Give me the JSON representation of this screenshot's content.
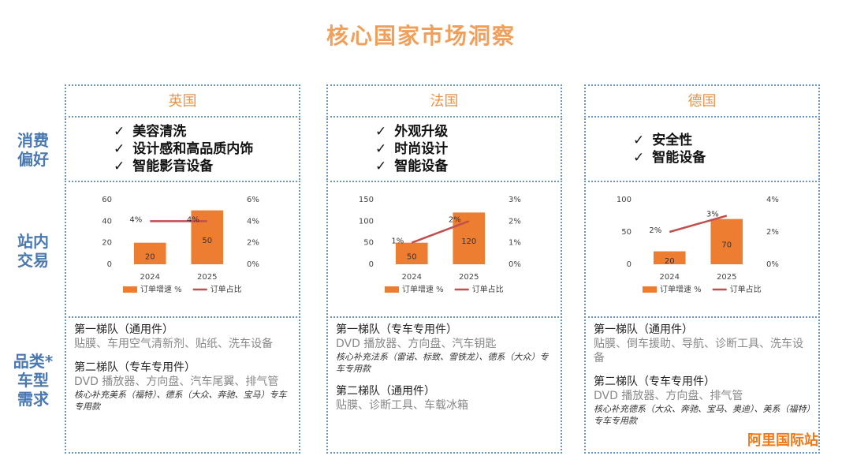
{
  "title": "核心国家市场洞察",
  "row_labels": [
    [
      "消费",
      "偏好"
    ],
    [
      "站内",
      "交易"
    ],
    [
      "品类*",
      "车型",
      "需求"
    ]
  ],
  "columns": [
    {
      "country": "英国",
      "preferences": [
        "美容清洗",
        "设计感和高品质内饰",
        "智能影音设备"
      ],
      "tiers": [
        {
          "title": "第一梯队（通用件）",
          "items": "贴膜、车用空气清新剂、贴纸、洗车设备"
        },
        {
          "title": "第二梯队（专车专用件）",
          "items": "DVD 播放器、方向盘、汽车尾翼、排气管",
          "note": "核心补充美系（福特）、德系（大众、奔驰、宝马）专车专用款"
        }
      ]
    },
    {
      "country": "法国",
      "preferences": [
        "外观升级",
        "时尚设计",
        "智能设备"
      ],
      "tiers": [
        {
          "title": "第一梯队（专车专用件）",
          "items": "DVD 播放器、方向盘、汽车钥匙",
          "note": "核心补充法系（雷诺、标致、雪铁龙）、德系（大众）专车专用款"
        },
        {
          "title": "第二梯队（通用件）",
          "items": "贴膜、诊断工具、车载冰箱"
        }
      ]
    },
    {
      "country": "德国",
      "preferences": [
        "安全性",
        "智能设备"
      ],
      "tiers": [
        {
          "title": "第一梯队（通用件）",
          "items": "贴膜、倒车援助、导航、诊断工具、洗车设备"
        },
        {
          "title": "第二梯队（专车专用件）",
          "items": "DVD 播放器、方向盘、排气管",
          "note": "核心补充德系（大众、奔驰、宝马、奥迪）、美系（福特）专车专用款"
        }
      ]
    }
  ],
  "watermark": "阿里国际站",
  "chart_data": [
    {
      "type": "bar",
      "categories": [
        "2024",
        "2025"
      ],
      "series": [
        {
          "name": "订单增速 %",
          "type": "bar",
          "color": "#ed7d31",
          "values": [
            20,
            50
          ]
        },
        {
          "name": "订单占比",
          "type": "line",
          "axis": "y2",
          "color": "#c0504d",
          "values": [
            4,
            4
          ],
          "value_labels": [
            "4%",
            "4%"
          ]
        }
      ],
      "ylim": [
        0,
        60
      ],
      "yticks": [
        0,
        20,
        40,
        60
      ],
      "y2lim": [
        0,
        6
      ],
      "y2ticks": [
        {
          "value": 0,
          "label": "0%"
        },
        {
          "value": 2,
          "label": "2%"
        },
        {
          "value": 4,
          "label": "4%"
        },
        {
          "value": 6,
          "label": "6%"
        }
      ]
    },
    {
      "type": "bar",
      "categories": [
        "2024",
        "2025"
      ],
      "series": [
        {
          "name": "订单增速 %",
          "type": "bar",
          "color": "#ed7d31",
          "values": [
            50,
            120
          ]
        },
        {
          "name": "订单占比",
          "type": "line",
          "axis": "y2",
          "color": "#c0504d",
          "values": [
            1,
            2
          ],
          "value_labels": [
            "1%",
            "2%"
          ]
        }
      ],
      "ylim": [
        0,
        150
      ],
      "yticks": [
        0,
        50,
        100,
        150
      ],
      "y2lim": [
        0,
        3
      ],
      "y2ticks": [
        {
          "value": 0,
          "label": "0%"
        },
        {
          "value": 1,
          "label": "1%"
        },
        {
          "value": 2,
          "label": "2%"
        },
        {
          "value": 3,
          "label": "3%"
        }
      ]
    },
    {
      "type": "bar",
      "categories": [
        "2024",
        "2025"
      ],
      "series": [
        {
          "name": "订单增速 %",
          "type": "bar",
          "color": "#ed7d31",
          "values": [
            20,
            70
          ]
        },
        {
          "name": "订单占比",
          "type": "line",
          "axis": "y2",
          "color": "#c0504d",
          "values": [
            2,
            3
          ],
          "value_labels": [
            "2%",
            "3%"
          ]
        }
      ],
      "ylim": [
        0,
        100
      ],
      "yticks": [
        0,
        50,
        100
      ],
      "y2lim": [
        0,
        4
      ],
      "y2ticks": [
        {
          "value": 0,
          "label": "0%"
        },
        {
          "value": 2,
          "label": "2%"
        },
        {
          "value": 4,
          "label": "4%"
        }
      ]
    }
  ]
}
